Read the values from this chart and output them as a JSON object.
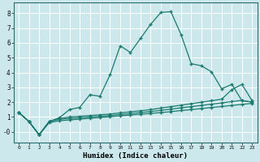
{
  "xlabel": "Humidex (Indice chaleur)",
  "background_color": "#cce8ec",
  "line_color": "#1a7a6e",
  "grid_color": "#ffffff",
  "xlim": [
    -0.5,
    23.5
  ],
  "ylim": [
    -0.7,
    8.7
  ],
  "yticks": [
    0,
    1,
    2,
    3,
    4,
    5,
    6,
    7,
    8
  ],
  "ytick_labels": [
    "-0",
    "1",
    "2",
    "3",
    "4",
    "5",
    "6",
    "7",
    "8"
  ],
  "xticks": [
    0,
    1,
    2,
    3,
    4,
    5,
    6,
    7,
    8,
    9,
    10,
    11,
    12,
    13,
    14,
    15,
    16,
    17,
    18,
    19,
    20,
    21,
    22,
    23
  ],
  "line1_x": [
    0,
    1,
    2,
    3,
    4,
    5,
    6,
    7,
    8,
    9,
    10,
    11,
    12,
    13,
    14,
    15,
    16,
    17,
    18,
    19,
    20,
    21,
    22,
    23
  ],
  "line1_y": [
    1.3,
    0.7,
    -0.2,
    0.7,
    0.95,
    1.5,
    1.65,
    2.5,
    2.4,
    3.85,
    5.8,
    5.35,
    6.3,
    7.25,
    8.05,
    8.1,
    6.55,
    4.6,
    4.45,
    4.05,
    2.9,
    3.2,
    2.1,
    2.0
  ],
  "line2_x": [
    0,
    1,
    2,
    3,
    4,
    5,
    6,
    7,
    8,
    9,
    10,
    11,
    12,
    13,
    14,
    15,
    16,
    17,
    18,
    19,
    20,
    21,
    22,
    23
  ],
  "line2_y": [
    1.3,
    0.7,
    -0.2,
    0.7,
    0.9,
    1.0,
    1.05,
    1.1,
    1.15,
    1.2,
    1.28,
    1.35,
    1.42,
    1.5,
    1.6,
    1.7,
    1.8,
    1.9,
    2.0,
    2.1,
    2.2,
    2.85,
    3.2,
    2.1
  ],
  "line3_x": [
    0,
    1,
    2,
    3,
    4,
    5,
    6,
    7,
    8,
    9,
    10,
    11,
    12,
    13,
    14,
    15,
    16,
    17,
    18,
    19,
    20,
    21,
    22,
    23
  ],
  "line3_y": [
    1.3,
    0.7,
    -0.2,
    0.7,
    0.85,
    0.9,
    0.95,
    1.0,
    1.05,
    1.1,
    1.17,
    1.23,
    1.3,
    1.37,
    1.45,
    1.53,
    1.62,
    1.7,
    1.78,
    1.87,
    1.95,
    2.04,
    2.12,
    2.0
  ],
  "line4_x": [
    0,
    1,
    2,
    3,
    4,
    5,
    6,
    7,
    8,
    9,
    10,
    11,
    12,
    13,
    14,
    15,
    16,
    17,
    18,
    19,
    20,
    21,
    22,
    23
  ],
  "line4_y": [
    1.3,
    0.7,
    -0.2,
    0.62,
    0.75,
    0.8,
    0.86,
    0.91,
    0.97,
    1.02,
    1.08,
    1.13,
    1.19,
    1.24,
    1.3,
    1.36,
    1.44,
    1.5,
    1.57,
    1.64,
    1.71,
    1.78,
    1.85,
    1.92
  ]
}
